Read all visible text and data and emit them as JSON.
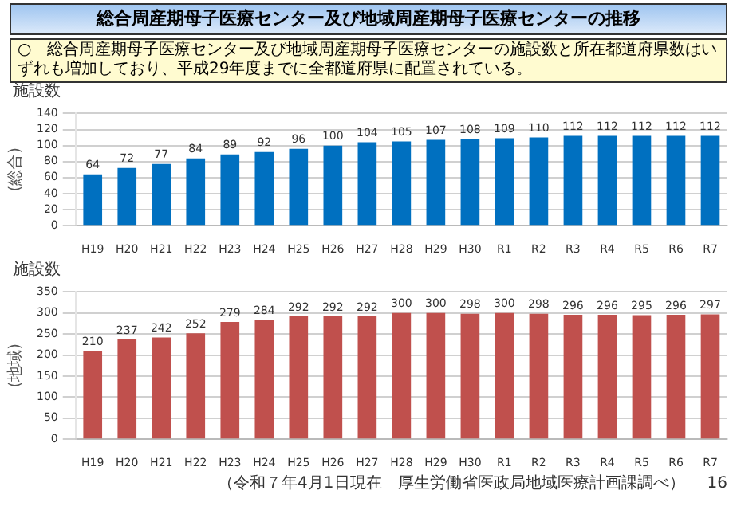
{
  "chart_data": [
    {
      "type": "bar",
      "title": "総合周産期母子医療センター及び地域周産期母子医療センターの推移",
      "subtitle": "○　総合周産期母子医療センター及び地域周産期母子医療センターの施設数と所在都道府県数はいずれも増加しており、平成29年度までに全都道府県に配置されている。",
      "ylabel": "(総合)",
      "annotations": [
        "施設数"
      ],
      "categories": [
        "H19",
        "H20",
        "H21",
        "H22",
        "H23",
        "H24",
        "H25",
        "H26",
        "H27",
        "H28",
        "H29",
        "H30",
        "R1",
        "R2",
        "R3",
        "R4",
        "R5",
        "R6",
        "R7"
      ],
      "values": [
        64,
        72,
        77,
        84,
        89,
        92,
        96,
        100,
        104,
        105,
        107,
        108,
        109,
        110,
        112,
        112,
        112,
        112,
        112
      ],
      "color": "#0070c0",
      "ylim": [
        0,
        140
      ],
      "yticks": [
        0,
        20,
        40,
        60,
        80,
        100,
        120,
        140
      ],
      "grid": "y",
      "data_labels": true
    },
    {
      "type": "bar",
      "ylabel": "(地域)",
      "annotations": [
        "施設数",
        "（令和７年4月1日現在　厚生労働省医政局地域医療計画課調べ）",
        "16"
      ],
      "categories": [
        "H19",
        "H20",
        "H21",
        "H22",
        "H23",
        "H24",
        "H25",
        "H26",
        "H27",
        "H28",
        "H29",
        "H30",
        "R1",
        "R2",
        "R3",
        "R4",
        "R5",
        "R6",
        "R7"
      ],
      "values": [
        210,
        237,
        242,
        252,
        279,
        284,
        292,
        292,
        292,
        300,
        300,
        298,
        300,
        298,
        296,
        296,
        295,
        296,
        297
      ],
      "color": "#c0504d",
      "ylim": [
        0,
        350
      ],
      "yticks": [
        0,
        50,
        100,
        150,
        200,
        250,
        300,
        350
      ],
      "grid": "y",
      "data_labels": true
    }
  ]
}
